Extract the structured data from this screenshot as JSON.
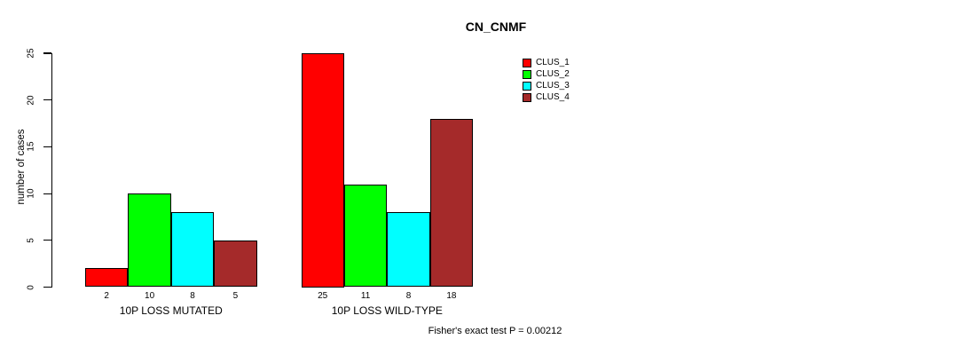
{
  "title": "CN_CNMF",
  "footer": "Fisher's exact test P = 0.00212",
  "chart_data": {
    "type": "bar",
    "title": "CN_CNMF",
    "xlabel": "",
    "ylabel": "number of cases",
    "ylim": [
      0,
      25
    ],
    "yticks": [
      0,
      5,
      10,
      15,
      20,
      25
    ],
    "grid": false,
    "legend_position": "top-right",
    "bar_borders_color": "#000000",
    "background_color": "#ffffff",
    "categories": [
      "10P LOSS MUTATED",
      "10P LOSS WILD-TYPE"
    ],
    "series": [
      {
        "name": "CLUS_1",
        "color": "#FF0000",
        "values": [
          2,
          25
        ]
      },
      {
        "name": "CLUS_2",
        "color": "#00FF00",
        "values": [
          10,
          11
        ]
      },
      {
        "name": "CLUS_3",
        "color": "#00FFFF",
        "values": [
          8,
          8
        ]
      },
      {
        "name": "CLUS_4",
        "color": "#A52A2A",
        "values": [
          5,
          18
        ]
      }
    ],
    "bar_value_labels": [
      [
        "2",
        "10",
        "8",
        "5"
      ],
      [
        "25",
        "11",
        "8",
        "18"
      ]
    ],
    "annotation": "Fisher's exact test P = 0.00212"
  }
}
